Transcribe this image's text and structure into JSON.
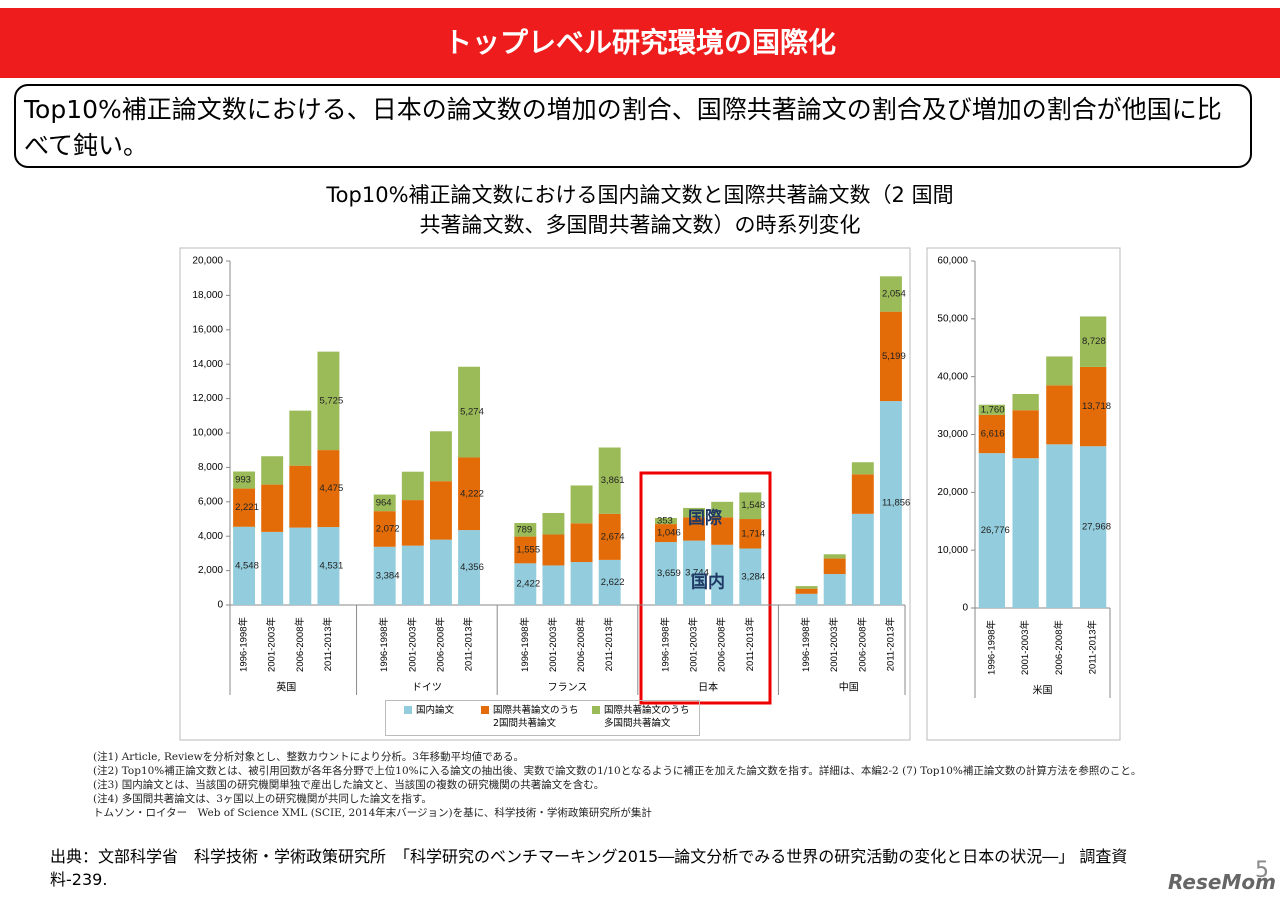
{
  "header": {
    "title": "トップレベル研究環境の国際化"
  },
  "summary": "Top10%補正論文数における、日本の論文数の増加の割合、国際共著論文の割合及び増加の割合が他国に比べて鈍い。",
  "figure_title": "Top10%補正論文数における国内論文数と国際共著論文数（2 国間\n共著論文数、多国間共著論文数）の時系列変化",
  "chart_data": [
    {
      "type": "bar",
      "stacked": true,
      "categories": [
        "1996-1998年",
        "2001-2003年",
        "2006-2008年",
        "2011-2013年",
        "1996-1998年",
        "2001-2003年",
        "2006-2008年",
        "2011-2013年",
        "1996-1998年",
        "2001-2003年",
        "2006-2008年",
        "2011-2013年",
        "1996-1998年",
        "2001-2003年",
        "2006-2008年",
        "2011-2013年",
        "1996-1998年",
        "2001-2003年",
        "2006-2008年",
        "2011-2013年"
      ],
      "group_labels": [
        "英国",
        "ドイツ",
        "フランス",
        "日本",
        "中国"
      ],
      "series": [
        {
          "name": "国内論文",
          "color": "#93cddd",
          "values": [
            4548,
            4250,
            4500,
            4531,
            3384,
            3450,
            3800,
            4356,
            2422,
            2300,
            2500,
            2622,
            3659,
            3744,
            3500,
            3284,
            650,
            1800,
            5300,
            11856
          ],
          "value_labels": [
            "4,548",
            null,
            null,
            "4,531",
            "3,384",
            null,
            null,
            "4,356",
            "2,422",
            null,
            null,
            "2,622",
            "3,659",
            "3,744",
            null,
            "3,284",
            null,
            null,
            null,
            "11,856"
          ]
        },
        {
          "name": "国際共著論文のうち\n2国間共著論文",
          "color": "#e36c09",
          "values": [
            2221,
            2750,
            3600,
            4475,
            2072,
            2650,
            3400,
            4222,
            1555,
            1800,
            2250,
            2674,
            1046,
            1350,
            1600,
            1714,
            300,
            900,
            2300,
            5199
          ],
          "value_labels": [
            "2,221",
            null,
            null,
            "4,475",
            "2,072",
            null,
            null,
            "4,222",
            "1,555",
            null,
            null,
            "2,674",
            "1,046",
            null,
            null,
            "1,714",
            null,
            null,
            null,
            "5,199"
          ]
        },
        {
          "name": "国際共著論文のうち\n多国間共著論文",
          "color": "#9bbb59",
          "values": [
            993,
            1650,
            3200,
            5725,
            964,
            1650,
            2900,
            5274,
            789,
            1250,
            2200,
            3861,
            353,
            550,
            900,
            1548,
            150,
            250,
            700,
            2054
          ],
          "value_labels": [
            "993",
            null,
            null,
            "5,725",
            "964",
            null,
            null,
            "5,274",
            "789",
            null,
            null,
            "3,861",
            "353",
            null,
            null,
            "1,548",
            null,
            null,
            null,
            "2,054"
          ]
        }
      ],
      "ylim": [
        0,
        20000
      ],
      "yticks": [
        0,
        {
          "value": 2000,
          "label": "2,000"
        },
        {
          "value": 4000,
          "label": "4,000"
        },
        {
          "value": 6000,
          "label": "6,000"
        },
        {
          "value": 8000,
          "label": "8,000"
        },
        {
          "value": 10000,
          "label": "10,000"
        },
        {
          "value": 12000,
          "label": "12,000"
        },
        {
          "value": 14000,
          "label": "14,000"
        },
        {
          "value": 16000,
          "label": "16,000"
        },
        {
          "value": 18000,
          "label": "18,000"
        },
        {
          "value": 20000,
          "label": "20,000"
        }
      ],
      "annotations": [
        "国際",
        "国内"
      ]
    },
    {
      "type": "bar",
      "stacked": true,
      "categories": [
        "1996-1998年",
        "2001-2003年",
        "2006-2008年",
        "2011-2013年"
      ],
      "group_labels": [
        "米国"
      ],
      "series": [
        {
          "color": "#93cddd",
          "values": [
            26776,
            25900,
            28300,
            27968
          ],
          "value_labels": [
            "26,776",
            null,
            null,
            "27,968"
          ]
        },
        {
          "color": "#e36c09",
          "values": [
            6616,
            8300,
            10200,
            13718
          ],
          "value_labels": [
            "6,616",
            null,
            null,
            "13,718"
          ]
        },
        {
          "color": "#9bbb59",
          "values": [
            1760,
            2800,
            5000,
            8728
          ],
          "value_labels": [
            "1,760",
            null,
            null,
            "8,728"
          ]
        }
      ],
      "ylim": [
        0,
        60000
      ],
      "yticks": [
        0,
        {
          "value": 10000,
          "label": "10,000"
        },
        {
          "value": 20000,
          "label": "20,000"
        },
        {
          "value": 30000,
          "label": "30,000"
        },
        {
          "value": 40000,
          "label": "40,000"
        },
        {
          "value": 50000,
          "label": "50,000"
        },
        {
          "value": 60000,
          "label": "60,000"
        }
      ]
    }
  ],
  "notes": [
    "(注1) Article, Reviewを分析対象とし、整数カウントにより分析。3年移動平均値である。",
    "(注2) Top10%補正論文数とは、被引用回数が各年各分野で上位10%に入る論文の抽出後、実数で論文数の1/10となるように補正を加えた論文数を指す。詳細は、本編2-2 (7) Top10%補正論文数の計算方法を参照のこと。",
    "(注3) 国内論文とは、当該国の研究機関単独で産出した論文と、当該国の複数の研究機関の共著論文を含む。",
    "(注4) 多国間共著論文は、3ヶ国以上の研究機関が共同した論文を指す。",
    "トムソン・ロイター　Web of Science XML (SCIE, 2014年末バージョン)を基に、科学技術・学術政策研究所が集計"
  ],
  "source": "出典：文部科学省　科学技術・学術政策研究所　「科学研究のベンチマーキング2015―論文分析でみる世界の研究活動の変化と日本の状況―」 調査資料-239.",
  "logo": "ReseMom",
  "page_number": "5"
}
